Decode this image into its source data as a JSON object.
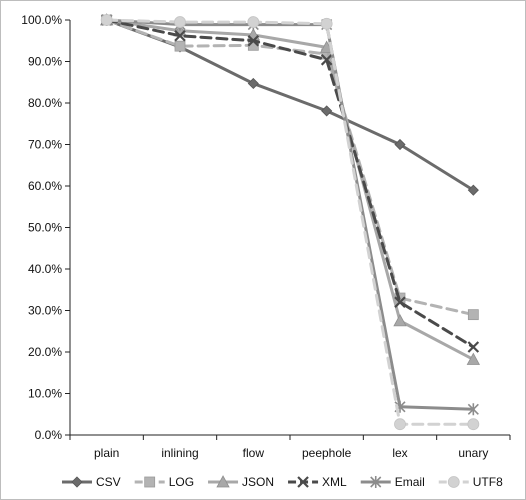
{
  "chart_data": {
    "type": "line",
    "title": "",
    "xlabel": "",
    "ylabel": "",
    "categories": [
      "plain",
      "inlining",
      "flow",
      "peephole",
      "lex",
      "unary"
    ],
    "ylim": [
      0,
      100
    ],
    "yticks": [
      0,
      10,
      20,
      30,
      40,
      50,
      60,
      70,
      80,
      90,
      100
    ],
    "ytick_labels": [
      "0.0%",
      "10.0%",
      "20.0%",
      "30.0%",
      "40.0%",
      "50.0%",
      "60.0%",
      "70.0%",
      "80.0%",
      "90.0%",
      "100.0%"
    ],
    "grid": false,
    "legend_position": "bottom",
    "series": [
      {
        "name": "CSV",
        "values": [
          100,
          93.5,
          84.7,
          78.1,
          70.0,
          59.0
        ],
        "color": "#6b6b6b",
        "dash": "solid",
        "marker": "diamond"
      },
      {
        "name": "LOG",
        "values": [
          100,
          93.7,
          93.9,
          91.8,
          33.0,
          29.0
        ],
        "color": "#b3b3b3",
        "dash": "dashed",
        "marker": "square"
      },
      {
        "name": "JSON",
        "values": [
          100,
          97.4,
          96.4,
          93.4,
          27.5,
          18.2
        ],
        "color": "#a8a8a8",
        "dash": "solid",
        "marker": "triangle"
      },
      {
        "name": "XML",
        "values": [
          100,
          96.2,
          95.0,
          90.4,
          32.0,
          21.2
        ],
        "color": "#4a4a4a",
        "dash": "dashed",
        "marker": "x"
      },
      {
        "name": "Email",
        "values": [
          100,
          98.9,
          98.9,
          98.9,
          6.8,
          6.2
        ],
        "color": "#8c8c8c",
        "dash": "solid",
        "marker": "asterisk"
      },
      {
        "name": "UTF8",
        "values": [
          100,
          99.5,
          99.5,
          99.1,
          2.6,
          2.6
        ],
        "color": "#d2d2d2",
        "dash": "dashed",
        "marker": "circle"
      }
    ]
  }
}
